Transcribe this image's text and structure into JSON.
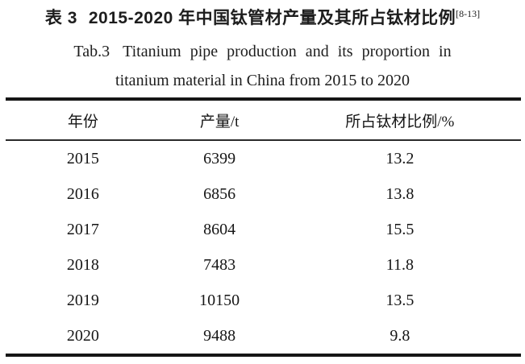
{
  "caption": {
    "zh_label": "表 3",
    "zh_title": "2015-2020 年中国钛管材产量及其所占钛材比例",
    "citation": "[8-13]",
    "en_label": "Tab.3",
    "en_line1": "Titanium pipe production and its proportion in",
    "en_line2": "titanium material in China from 2015 to 2020"
  },
  "table": {
    "headers": [
      "年份",
      "产量/t",
      "所占钛材比例/%"
    ],
    "rows": [
      [
        "2015",
        "6399",
        "13.2"
      ],
      [
        "2016",
        "6856",
        "13.8"
      ],
      [
        "2017",
        "8604",
        "15.5"
      ],
      [
        "2018",
        "7483",
        "11.8"
      ],
      [
        "2019",
        "10150",
        "13.5"
      ],
      [
        "2020",
        "9488",
        "9.8"
      ]
    ]
  },
  "colors": {
    "text": "#1d1d1d",
    "rule": "#161616",
    "background": "#ffffff"
  }
}
